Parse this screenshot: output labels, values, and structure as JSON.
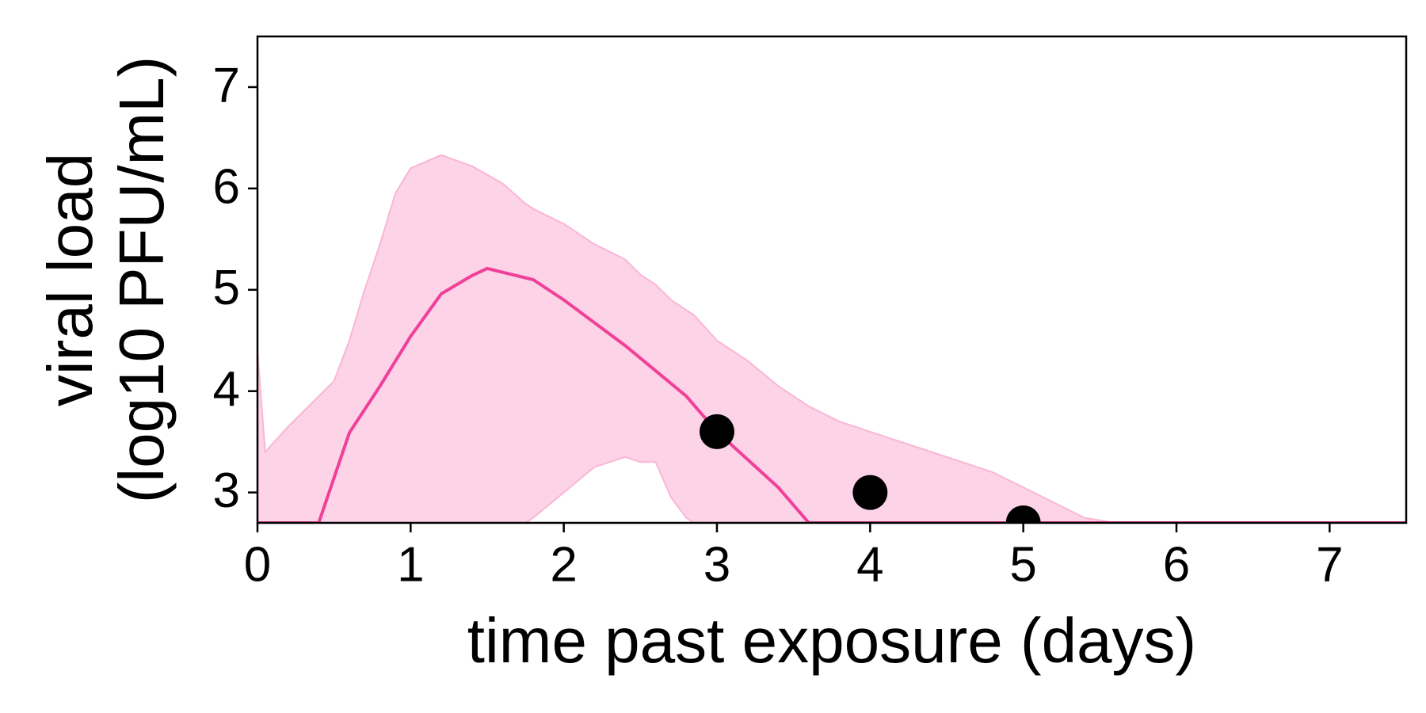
{
  "chart_data": {
    "type": "line",
    "xlabel": "time past exposure (days)",
    "ylabel": [
      "viral load",
      "(log10 PFU/mL)"
    ],
    "xlim": [
      0,
      7.5
    ],
    "ylim": [
      2.7,
      7.5
    ],
    "xticks": [
      0,
      1,
      2,
      3,
      4,
      5,
      6,
      7
    ],
    "yticks": [
      3,
      4,
      5,
      6,
      7
    ],
    "grid": false,
    "band": {
      "color": "#fdd3e7",
      "edge_color": "#f9b6d6",
      "x": [
        0,
        0.05,
        0.2,
        0.4,
        0.5,
        0.6,
        0.7,
        0.8,
        0.9,
        1.0,
        1.2,
        1.4,
        1.6,
        1.75,
        1.8,
        2.0,
        2.2,
        2.4,
        2.5,
        2.6,
        2.7,
        2.8,
        2.85,
        3.0,
        3.2,
        3.4,
        3.6,
        3.8,
        4.0,
        4.4,
        4.8,
        5.0,
        5.2,
        5.4,
        5.6,
        7.5
      ],
      "upper": [
        4.4,
        3.4,
        3.65,
        3.95,
        4.1,
        4.5,
        5.0,
        5.45,
        5.95,
        6.2,
        6.33,
        6.22,
        6.05,
        5.85,
        5.8,
        5.65,
        5.45,
        5.3,
        5.15,
        5.05,
        4.9,
        4.8,
        4.75,
        4.5,
        4.3,
        4.05,
        3.85,
        3.7,
        3.6,
        3.4,
        3.2,
        3.05,
        2.9,
        2.75,
        2.7,
        2.7
      ],
      "lower": [
        2.7,
        2.7,
        2.7,
        2.7,
        2.7,
        2.7,
        2.7,
        2.7,
        2.7,
        2.7,
        2.7,
        2.7,
        2.7,
        2.7,
        2.75,
        3.0,
        3.25,
        3.35,
        3.3,
        3.3,
        2.95,
        2.75,
        2.7,
        2.7,
        2.7,
        2.7,
        2.7,
        2.7,
        2.7,
        2.7,
        2.7,
        2.7,
        2.7,
        2.7,
        2.7,
        2.7
      ]
    },
    "series": [
      {
        "color": "#f0409a",
        "x": [
          0,
          0.4,
          0.6,
          0.8,
          1.0,
          1.2,
          1.4,
          1.5,
          1.8,
          2.0,
          2.4,
          2.8,
          3.0,
          3.4,
          3.6,
          7.5
        ],
        "values": [
          2.7,
          2.7,
          3.59,
          4.05,
          4.54,
          4.96,
          5.14,
          5.21,
          5.1,
          4.9,
          4.45,
          3.95,
          3.6,
          3.05,
          2.7,
          2.7
        ]
      }
    ],
    "points": {
      "color": "#000000",
      "x": [
        3,
        4,
        5
      ],
      "values": [
        3.6,
        3.0,
        2.7
      ]
    }
  }
}
